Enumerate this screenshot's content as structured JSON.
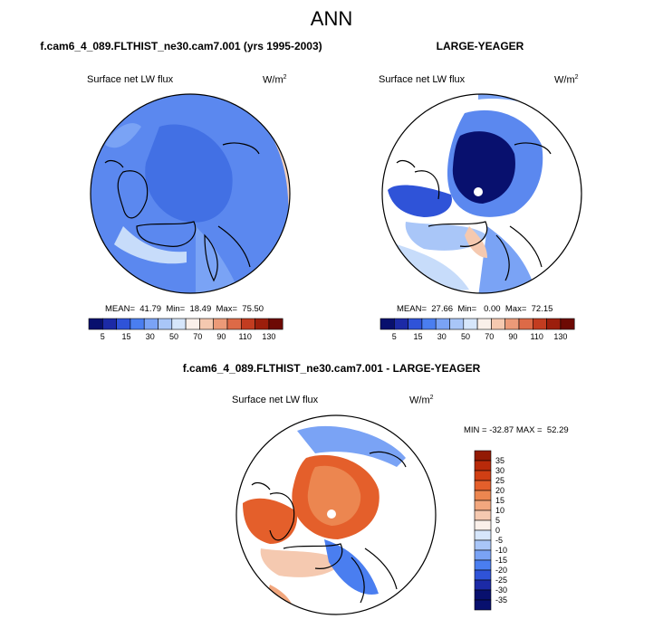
{
  "title": "ANN",
  "panels": [
    {
      "id": "test",
      "header": "f.cam6_4_089.FLTHIST_ne30.cam7.001 (yrs 1995-2003)",
      "variable": "Surface net LW flux",
      "units": "W/m",
      "units_sup": "2",
      "stats_text": "MEAN=  41.79  Min=  18.49  Max=  75.50"
    },
    {
      "id": "obs",
      "header": "LARGE-YEAGER",
      "variable": "Surface net LW flux",
      "units": "W/m",
      "units_sup": "2",
      "stats_text": "MEAN=  27.66  Min=   0.00  Max=  72.15"
    },
    {
      "id": "diff",
      "header": "f.cam6_4_089.FLTHIST_ne30.cam7.001 - LARGE-YEAGER",
      "variable": "Surface net LW flux",
      "units": "W/m",
      "units_sup": "2",
      "stats_text": "MIN = -32.87 MAX =  52.29"
    }
  ],
  "colors": {
    "abs_bar": [
      "#08106e",
      "#1c2aa6",
      "#2f53d8",
      "#4a7ef0",
      "#7aa3f5",
      "#a9c6f8",
      "#d6e6fb",
      "#faf0ea",
      "#f5c9b0",
      "#ec9a78",
      "#dd6a47",
      "#c33c20",
      "#9c1e0c",
      "#6d0a04"
    ],
    "diff_bar": [
      "#08106e",
      "#1c2aa6",
      "#2f53d8",
      "#4a7ef0",
      "#7aa3f5",
      "#a9c6f8",
      "#d6e6fb",
      "#faf0ea",
      "#f5c9b0",
      "#f2a77e",
      "#ec8650",
      "#e45f2b",
      "#d03f14",
      "#b82a0a",
      "#931a04"
    ]
  },
  "chart_data": [
    {
      "type": "polar-contour-map",
      "panel": "test",
      "title": "f.cam6_4_089.FLTHIST_ne30.cam7.001 (yrs 1995-2003)",
      "variable": "Surface net LW flux",
      "units": "W/m2",
      "stats": {
        "mean": 41.79,
        "min": 18.49,
        "max": 75.5
      },
      "colorbar_ticks": [
        5,
        15,
        30,
        50,
        70,
        90,
        110,
        130
      ],
      "colorbar_orientation": "horizontal"
    },
    {
      "type": "polar-contour-map",
      "panel": "obs",
      "title": "LARGE-YEAGER",
      "variable": "Surface net LW flux",
      "units": "W/m2",
      "stats": {
        "mean": 27.66,
        "min": 0.0,
        "max": 72.15
      },
      "colorbar_ticks": [
        5,
        15,
        30,
        50,
        70,
        90,
        110,
        130
      ],
      "colorbar_orientation": "horizontal"
    },
    {
      "type": "polar-contour-map",
      "panel": "diff",
      "title": "f.cam6_4_089.FLTHIST_ne30.cam7.001 - LARGE-YEAGER",
      "variable": "Surface net LW flux",
      "units": "W/m2",
      "stats": {
        "min": -32.87,
        "max": 52.29
      },
      "colorbar_ticks": [
        35,
        30,
        25,
        20,
        15,
        10,
        5,
        0,
        -5,
        -10,
        -15,
        -20,
        -25,
        -30,
        -35
      ],
      "colorbar_orientation": "vertical"
    }
  ]
}
